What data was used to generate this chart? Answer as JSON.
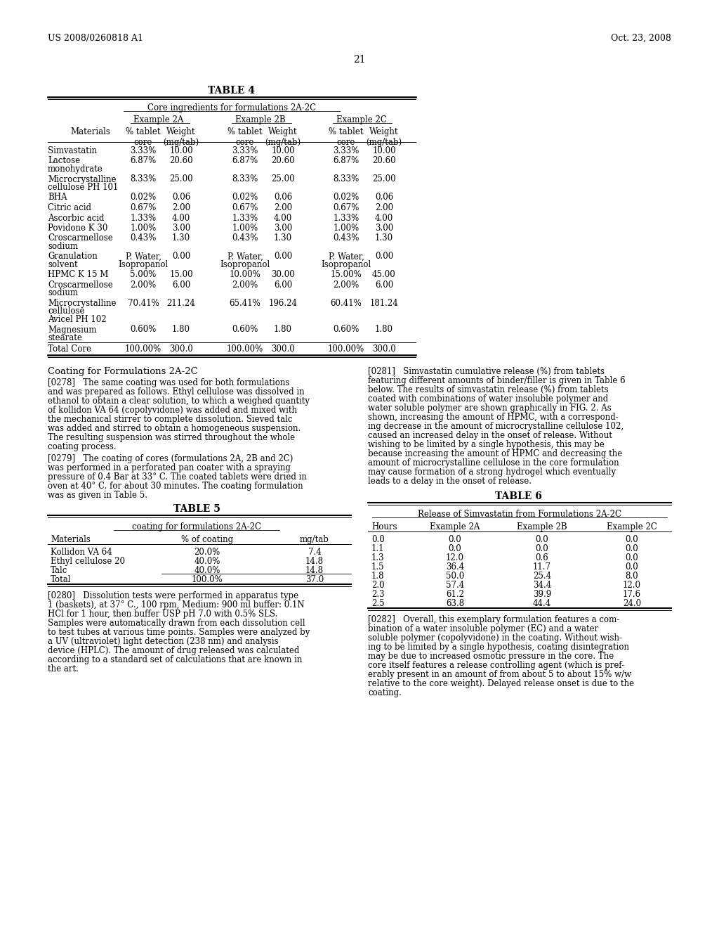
{
  "header_left": "US 2008/0260818 A1",
  "header_right": "Oct. 23, 2008",
  "page_number": "21",
  "table4_title": "TABLE 4",
  "table4_subtitle": "Core ingredients for formulations 2A-2C",
  "table5_title": "TABLE 5",
  "table5_subtitle": "coating for formulations 2A-2C",
  "table5_headers": [
    "Materials",
    "% of coating",
    "mg/tab"
  ],
  "table5_rows": [
    [
      "Kollidon VA 64",
      "20.0%",
      "7.4"
    ],
    [
      "Ethyl cellulose 20",
      "40.0%",
      "14.8"
    ],
    [
      "Talc",
      "40.0%",
      "14.8"
    ],
    [
      "Total",
      "100.0%",
      "37.0"
    ]
  ],
  "table6_title": "TABLE 6",
  "table6_subtitle": "Release of Simvastatin from Formulations 2A-2C",
  "table6_headers": [
    "Hours",
    "Example 2A",
    "Example 2B",
    "Example 2C"
  ],
  "table6_rows": [
    [
      "0.0",
      "0.0",
      "0.0",
      "0.0"
    ],
    [
      "1.1",
      "0.0",
      "0.0",
      "0.0"
    ],
    [
      "1.3",
      "12.0",
      "0.6",
      "0.0"
    ],
    [
      "1.5",
      "36.4",
      "11.7",
      "0.0"
    ],
    [
      "1.8",
      "50.0",
      "25.4",
      "8.0"
    ],
    [
      "2.0",
      "57.4",
      "34.4",
      "12.0"
    ],
    [
      "2.3",
      "61.2",
      "39.9",
      "17.6"
    ],
    [
      "2.5",
      "63.8",
      "44.4",
      "24.0"
    ]
  ],
  "table4_rows": [
    [
      "Simvastatin",
      "3.33%",
      "10.00",
      "3.33%",
      "10.00",
      "3.33%",
      "10.00",
      1
    ],
    [
      "Lactose\nmonohydrate",
      "6.87%",
      "20.60",
      "6.87%",
      "20.60",
      "6.87%",
      "20.60",
      2
    ],
    [
      "Microcrystalline\ncellulose PH 101",
      "8.33%",
      "25.00",
      "8.33%",
      "25.00",
      "8.33%",
      "25.00",
      2
    ],
    [
      "BHA",
      "0.02%",
      "0.06",
      "0.02%",
      "0.06",
      "0.02%",
      "0.06",
      1
    ],
    [
      "Citric acid",
      "0.67%",
      "2.00",
      "0.67%",
      "2.00",
      "0.67%",
      "2.00",
      1
    ],
    [
      "Ascorbic acid",
      "1.33%",
      "4.00",
      "1.33%",
      "4.00",
      "1.33%",
      "4.00",
      1
    ],
    [
      "Povidone K 30",
      "1.00%",
      "3.00",
      "1.00%",
      "3.00",
      "1.00%",
      "3.00",
      1
    ],
    [
      "Croscarmellose\nsodium",
      "0.43%",
      "1.30",
      "0.43%",
      "1.30",
      "0.43%",
      "1.30",
      2
    ],
    [
      "Granulation\nsolvent",
      "P. Water,\nIsopropanol",
      "0.00",
      "P. Water,\nIsopropanol",
      "0.00",
      "P. Water,\nIsopropanol",
      "0.00",
      2
    ],
    [
      "HPMC K 15 M",
      "5.00%",
      "15.00",
      "10.00%",
      "30.00",
      "15.00%",
      "45.00",
      1
    ],
    [
      "Croscarmellose\nsodium",
      "2.00%",
      "6.00",
      "2.00%",
      "6.00",
      "2.00%",
      "6.00",
      2
    ],
    [
      "Microcrystalline\ncellulose\nAvicel PH 102",
      "70.41%",
      "211.24",
      "65.41%",
      "196.24",
      "60.41%",
      "181.24",
      3
    ],
    [
      "Magnesium\nstearate",
      "0.60%",
      "1.80",
      "0.60%",
      "1.80",
      "0.60%",
      "1.80",
      2
    ],
    [
      "Total Core",
      "100.00%",
      "300.0",
      "100.00%",
      "300.0",
      "100.00%",
      "300.0",
      1
    ]
  ],
  "p278": "[0278]   The same coating was used for both formulations\nand was prepared as follows. Ethyl cellulose was dissolved in\nethanol to obtain a clear solution, to which a weighed quantity\nof kollidon VA 64 (copolyvidone) was added and mixed with\nthe mechanical stirrer to complete dissolution. Sieved talc\nwas added and stirred to obtain a homogeneous suspension.\nThe resulting suspension was stirred throughout the whole\ncoating process.",
  "p279": "[0279]   The coating of cores (formulations 2A, 2B and 2C)\nwas performed in a perforated pan coater with a spraying\npressure of 0.4 Bar at 33° C. The coated tablets were dried in\noven at 40° C. for about 30 minutes. The coating formulation\nwas as given in Table 5.",
  "p280": "[0280]   Dissolution tests were performed in apparatus type\n1 (baskets), at 37° C., 100 rpm, Medium: 900 ml buffer: 0.1N\nHCl for 1 hour, then buffer USP pH 7.0 with 0.5% SLS.\nSamples were automatically drawn from each dissolution cell\nto test tubes at various time points. Samples were analyzed by\na UV (ultraviolet) light detection (238 nm) and analysis\ndevice (HPLC). The amount of drug released was calculated\naccording to a standard set of calculations that are known in\nthe art.",
  "p281": "[0281]   Simvastatin cumulative release (%) from tablets\nfeaturing different amounts of binder/filler is given in Table 6\nbelow. The results of simvastatin release (%) from tablets\ncoated with combinations of water insoluble polymer and\nwater soluble polymer are shown graphically in FIG. 2. As\nshown, increasing the amount of HPMC, with a correspond-\ning decrease in the amount of microcrystalline cellulose 102,\ncaused an increased delay in the onset of release. Without\nwishing to be limited by a single hypothesis, this may be\nbecause increasing the amount of HPMC and decreasing the\namount of microcrystalline cellulose in the core formulation\nmay cause formation of a strong hydrogel which eventually\nleads to a delay in the onset of release.",
  "p282": "[0282]   Overall, this exemplary formulation features a com-\nbination of a water insoluble polymer (EC) and a water\nsoluble polymer (copolyvidone) in the coating. Without wish-\ning to be limited by a single hypothesis, coating disintegration\nmay be due to increased osmotic pressure in the core. The\ncore itself features a release controlling agent (which is pref-\nerably present in an amount of from about 5 to about 15% w/w\nrelative to the core weight). Delayed release onset is due to the\ncoating.",
  "coating_header": "Coating for Formulations 2A-2C"
}
